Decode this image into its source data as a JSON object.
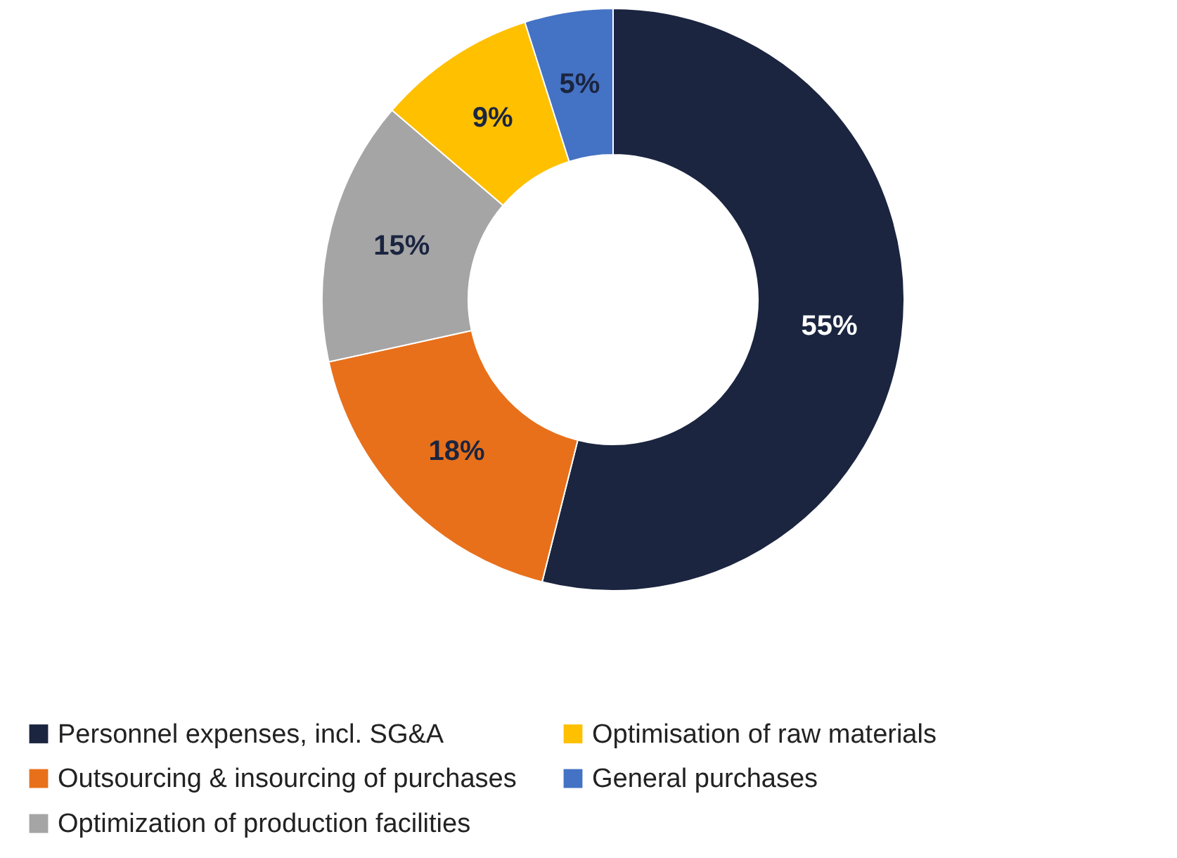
{
  "chart_data": {
    "type": "donut",
    "categories": [
      "Personnel expenses, incl. SG&A",
      "Outsourcing & insourcing of purchases",
      "Optimization of production facilities",
      "Optimisation of raw materials",
      "General purchases"
    ],
    "values": [
      55,
      18,
      15,
      9,
      5
    ],
    "colors": [
      "#1b2540",
      "#e8701a",
      "#a5a5a5",
      "#ffc000",
      "#4472c4"
    ],
    "value_labels": [
      "55%",
      "18%",
      "15%",
      "9%",
      "5%"
    ],
    "legend": "bottom"
  }
}
